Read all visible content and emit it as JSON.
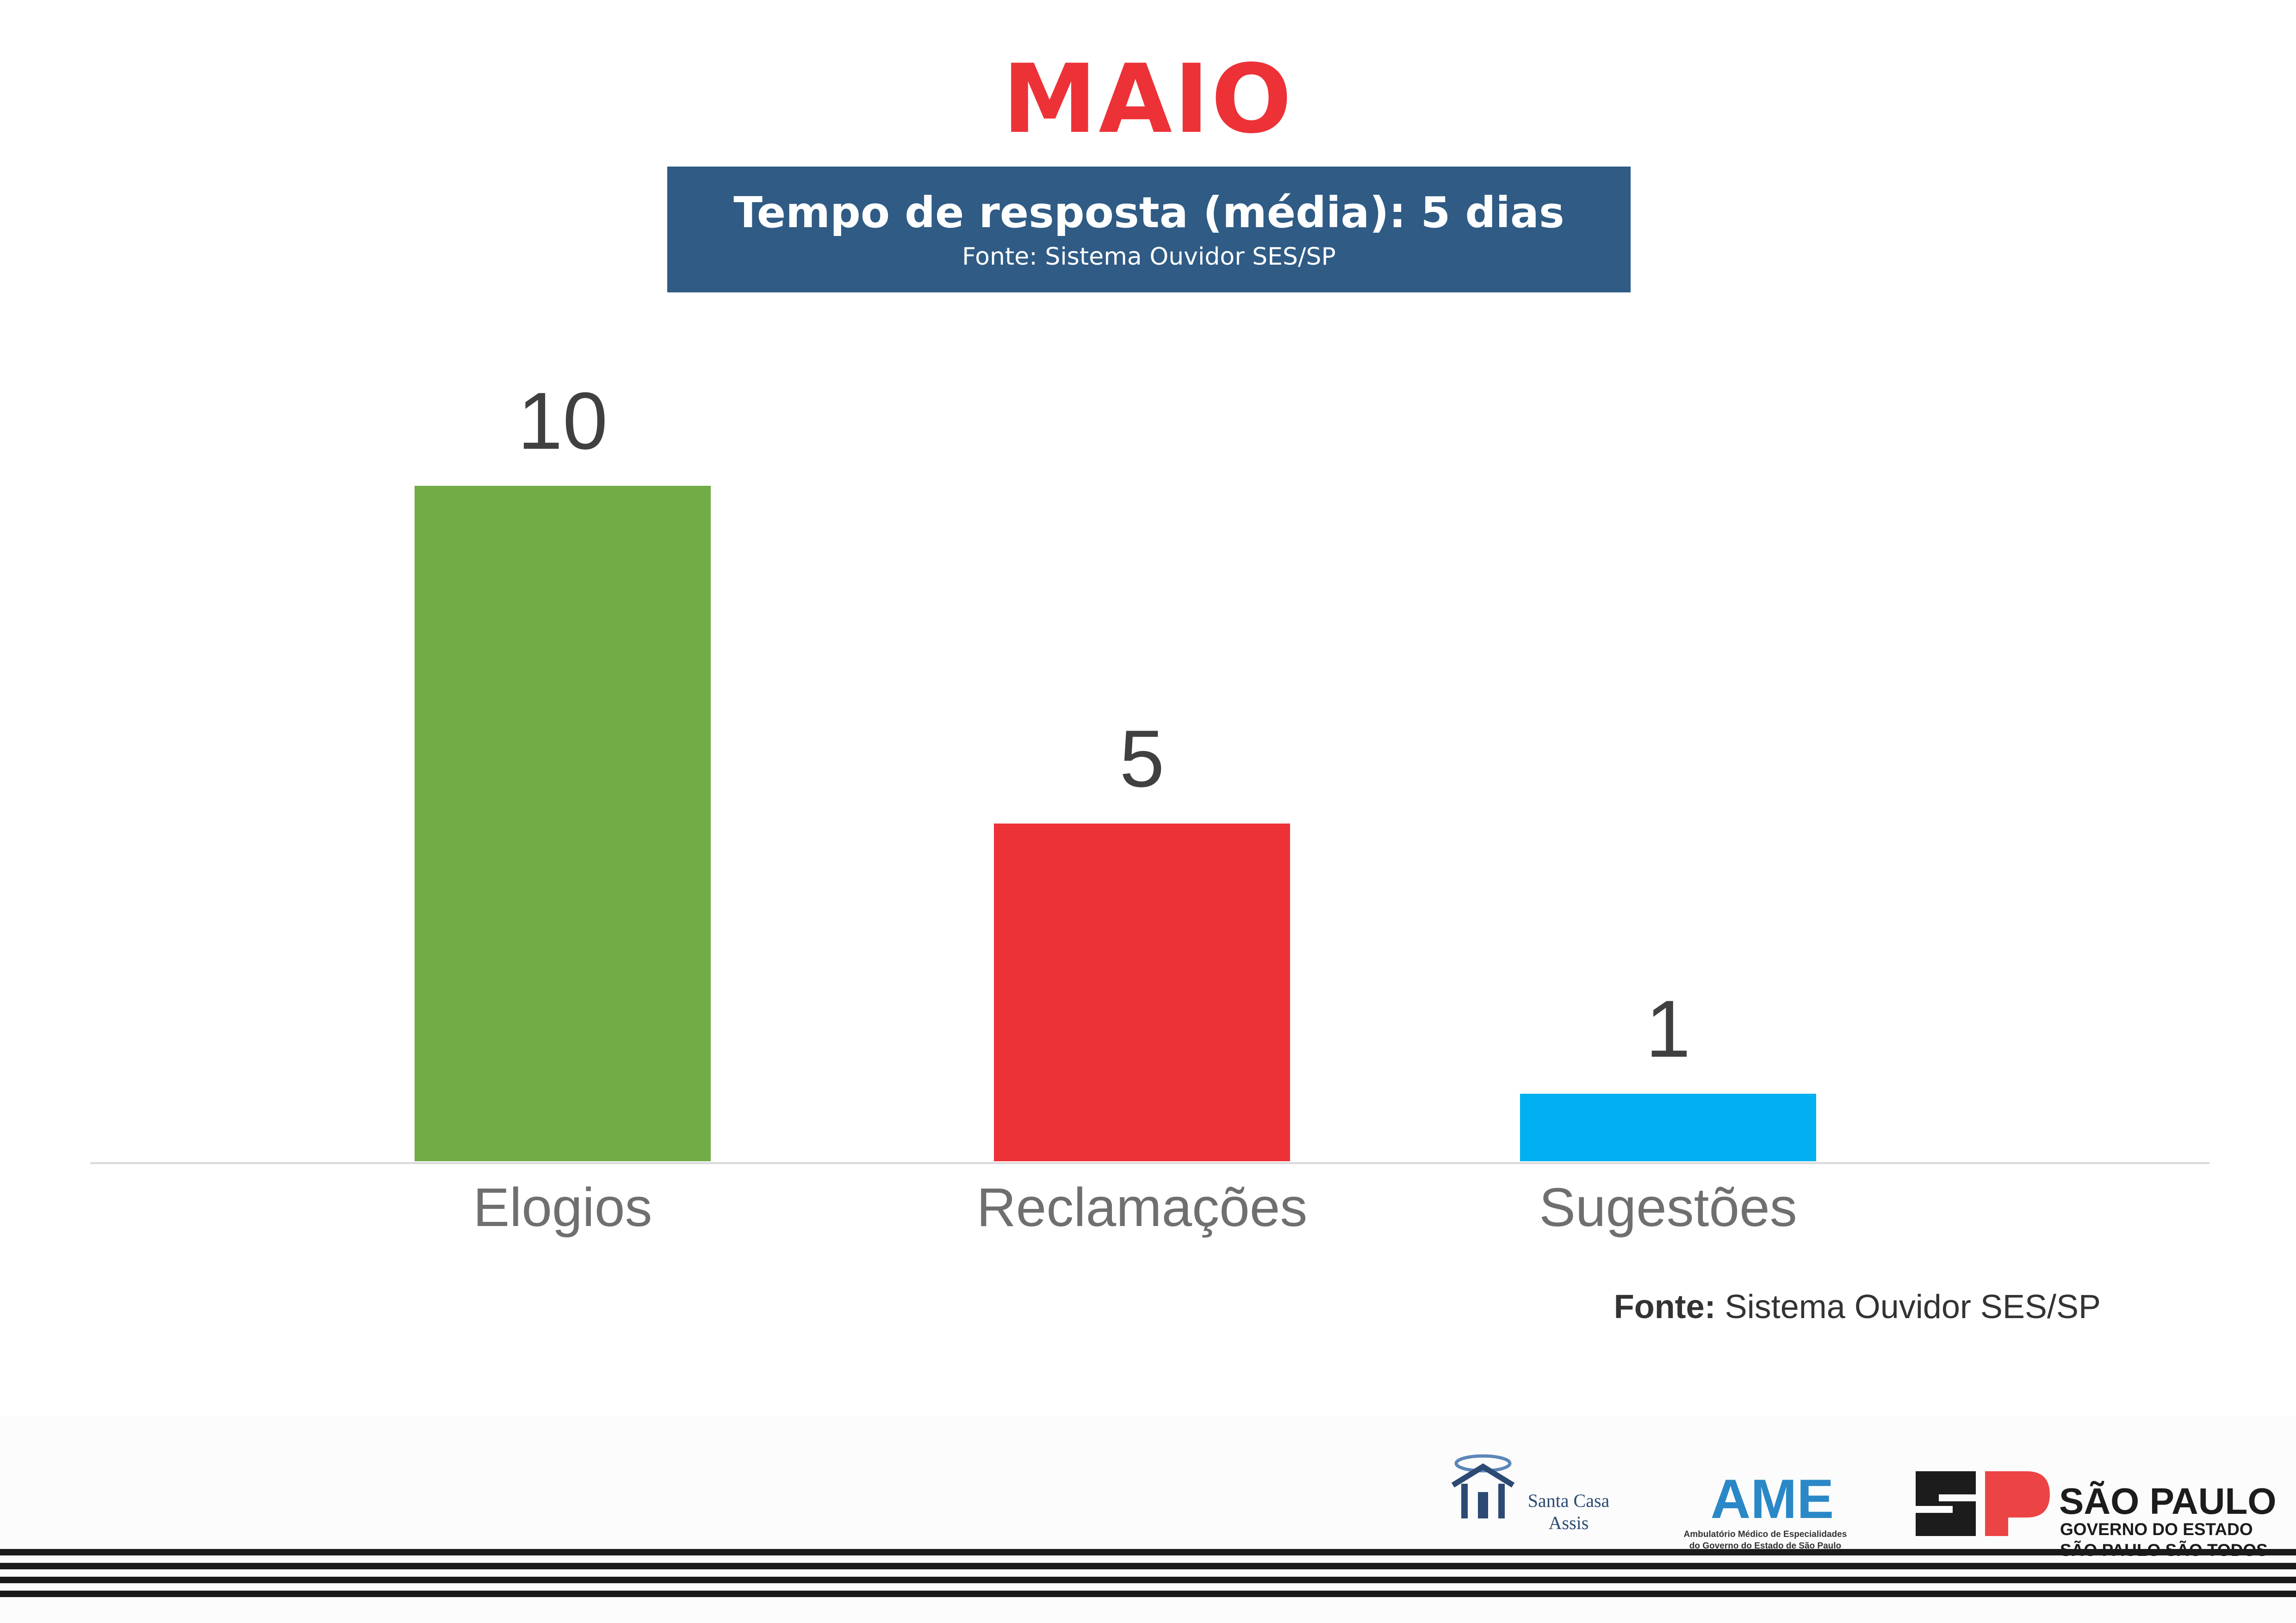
{
  "page": {
    "title": "MAIO",
    "banner": {
      "main": "Tempo de resposta (média): 5 dias",
      "sub": "Fonte: Sistema Ouvidor SES/SP"
    },
    "source_note": {
      "label": "Fonte:",
      "text": " Sistema Ouvidor SES/SP"
    }
  },
  "chart_data": {
    "type": "bar",
    "categories": [
      "Elogios",
      "Reclamações",
      "Sugestões"
    ],
    "values": [
      10,
      5,
      1
    ],
    "colors": [
      "#71ac47",
      "#ec3237",
      "#00b0f0"
    ],
    "title": "",
    "xlabel": "",
    "ylabel": "",
    "ylim": [
      0,
      10
    ],
    "grid": false,
    "legend": "none"
  },
  "logos": {
    "santa_casa": {
      "line1": "Santa Casa",
      "line2": "Assis",
      "icon": "chapel-icon"
    },
    "ame": {
      "name": "AME",
      "line1": "Ambulatório Médico de Especialidades",
      "line2": "do Governo do Estado de São Paulo"
    },
    "sao_paulo": {
      "line1": "SÃO PAULO",
      "line2": "GOVERNO DO ESTADO",
      "line3": "SÃO PAULO SÃO TODOS",
      "icon": "sp-emblem-icon",
      "colors": [
        "#1c1c1c",
        "#ec4444"
      ]
    }
  }
}
